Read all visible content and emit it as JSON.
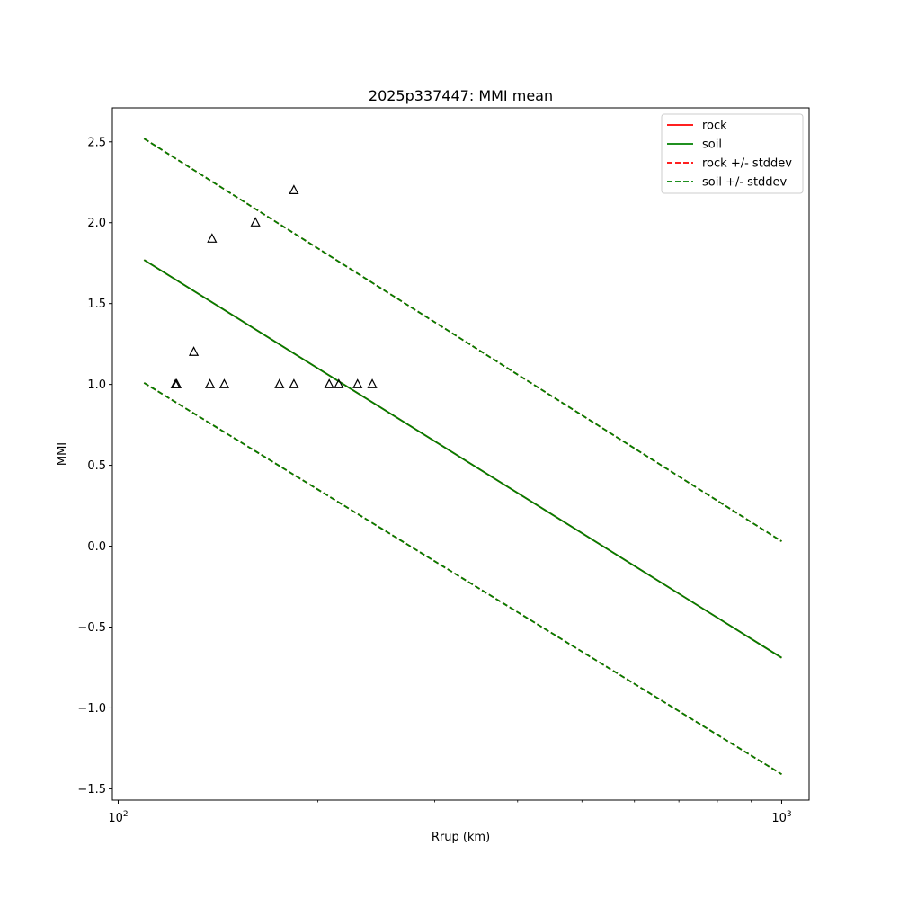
{
  "chart_data": {
    "type": "scatter",
    "title": "2025p337447: MMI mean",
    "xlabel": "Rrup (km)",
    "ylabel": "MMI",
    "xscale": "log",
    "xlim": [
      98,
      1100
    ],
    "ylim": [
      -1.57,
      2.71
    ],
    "x_ticks": [
      {
        "value": 100,
        "label": "10",
        "exponent": "2"
      },
      {
        "value": 1000,
        "label": "10",
        "exponent": "3"
      }
    ],
    "y_ticks": [
      {
        "value": 2.5,
        "label": "2.5"
      },
      {
        "value": 2.0,
        "label": "2.0"
      },
      {
        "value": 1.5,
        "label": "1.5"
      },
      {
        "value": 1.0,
        "label": "1.0"
      },
      {
        "value": 0.5,
        "label": "0.5"
      },
      {
        "value": 0.0,
        "label": "0.0"
      },
      {
        "value": -0.5,
        "label": "−0.5"
      },
      {
        "value": -1.0,
        "label": "−1.0"
      },
      {
        "value": -1.5,
        "label": "−1.5"
      }
    ],
    "series": [
      {
        "name": "rock",
        "style": "solid",
        "color": "#ff0000",
        "x": [
          109.4,
          1000
        ],
        "y": [
          1.77,
          -0.69
        ]
      },
      {
        "name": "soil",
        "style": "solid",
        "color": "#008000",
        "x": [
          109.4,
          1000
        ],
        "y": [
          1.77,
          -0.69
        ]
      },
      {
        "name": "rock +/- stddev",
        "style": "dashed",
        "color": "#ff0000",
        "x": [
          109.4,
          1000
        ],
        "y_upper": [
          2.52,
          0.03
        ],
        "y_lower": [
          1.01,
          -1.41
        ]
      },
      {
        "name": "soil +/- stddev",
        "style": "dashed",
        "color": "#008000",
        "x": [
          109.4,
          1000
        ],
        "y_upper": [
          2.52,
          0.03
        ],
        "y_lower": [
          1.01,
          -1.41
        ]
      }
    ],
    "observations": {
      "marker": "open-triangle",
      "points": [
        {
          "x": 122.0,
          "y": 1.0
        },
        {
          "x": 122.5,
          "y": 1.0
        },
        {
          "x": 130.0,
          "y": 1.2
        },
        {
          "x": 137.5,
          "y": 1.0
        },
        {
          "x": 138.5,
          "y": 1.9
        },
        {
          "x": 144.5,
          "y": 1.0
        },
        {
          "x": 161.0,
          "y": 2.0
        },
        {
          "x": 175.0,
          "y": 1.0
        },
        {
          "x": 184.0,
          "y": 1.0
        },
        {
          "x": 184.0,
          "y": 2.2
        },
        {
          "x": 208.0,
          "y": 1.0
        },
        {
          "x": 215.0,
          "y": 1.0
        },
        {
          "x": 229.5,
          "y": 1.0
        },
        {
          "x": 241.5,
          "y": 1.0
        }
      ]
    },
    "legend": {
      "position": "top-right",
      "entries": [
        "rock",
        "soil",
        "rock +/- stddev",
        "soil +/- stddev"
      ]
    },
    "grid": false
  }
}
